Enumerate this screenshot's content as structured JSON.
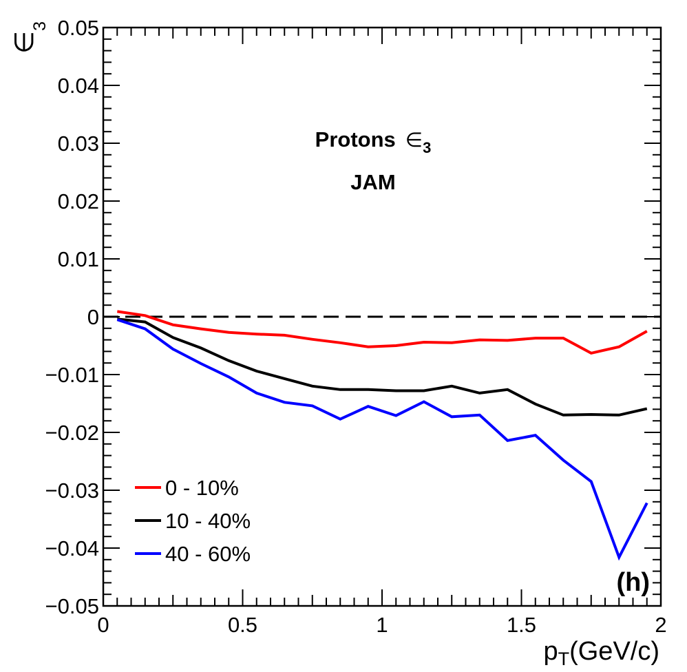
{
  "chart_data": {
    "type": "line",
    "xlabel": {
      "main": "p",
      "sub": "T",
      "tail": "(GeV/c)"
    },
    "ylabel": {
      "main": "∈",
      "sub": "3"
    },
    "xlim": [
      0,
      2
    ],
    "ylim": [
      -0.05,
      0.05
    ],
    "x_ticks": [
      0,
      0.5,
      1,
      1.5,
      2
    ],
    "x_tick_labels": [
      "0",
      "0.5",
      "1",
      "1.5",
      "2"
    ],
    "y_ticks": [
      -0.05,
      -0.04,
      -0.03,
      -0.02,
      -0.01,
      0,
      0.01,
      0.02,
      0.03,
      0.04,
      0.05
    ],
    "y_tick_labels": [
      "−0.05",
      "−0.04",
      "−0.03",
      "−0.02",
      "−0.01",
      "0",
      "0.01",
      "0.02",
      "0.03",
      "0.04",
      "0.05"
    ],
    "reference_line": {
      "y": 0,
      "style": "dashed"
    },
    "annotation": {
      "title": "Protons",
      "symbol": "∈",
      "symbol_sub": "3",
      "model": "JAM"
    },
    "panel_label": "(h)",
    "legend_position": "bottom-left",
    "grid": false,
    "x": [
      0.05,
      0.15,
      0.25,
      0.35,
      0.45,
      0.55,
      0.65,
      0.75,
      0.85,
      0.95,
      1.05,
      1.15,
      1.25,
      1.35,
      1.45,
      1.55,
      1.65,
      1.75,
      1.85,
      1.95
    ],
    "series": [
      {
        "name": "0 - 10%",
        "color": "#ff0000",
        "values": [
          0.0009,
          0.0002,
          -0.0014,
          -0.0021,
          -0.0027,
          -0.003,
          -0.0032,
          -0.0039,
          -0.0045,
          -0.0052,
          -0.005,
          -0.0044,
          -0.0045,
          -0.004,
          -0.0041,
          -0.0037,
          -0.0037,
          -0.0063,
          -0.0052,
          -0.0025
        ]
      },
      {
        "name": "10 - 40%",
        "color": "#000000",
        "values": [
          -0.0004,
          -0.0009,
          -0.0036,
          -0.0054,
          -0.0076,
          -0.0094,
          -0.0107,
          -0.012,
          -0.0126,
          -0.0126,
          -0.0128,
          -0.0128,
          -0.012,
          -0.0132,
          -0.0126,
          -0.0151,
          -0.017,
          -0.0169,
          -0.017,
          -0.0159
        ]
      },
      {
        "name": "40 - 60%",
        "color": "#0000ff",
        "values": [
          -0.0005,
          -0.0021,
          -0.0056,
          -0.0081,
          -0.0104,
          -0.0132,
          -0.0148,
          -0.0154,
          -0.0177,
          -0.0155,
          -0.0171,
          -0.0147,
          -0.0173,
          -0.017,
          -0.0214,
          -0.0205,
          -0.0248,
          -0.0285,
          -0.0416,
          -0.0322
        ]
      }
    ]
  }
}
